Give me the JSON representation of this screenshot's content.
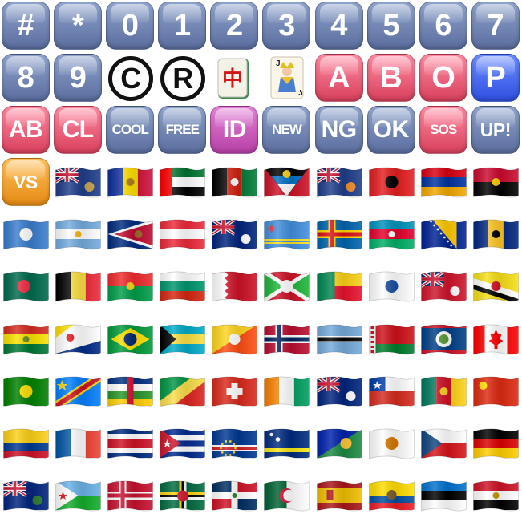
{
  "keycaps": [
    {
      "label": "#",
      "color": "blue",
      "size": "xl"
    },
    {
      "label": "*",
      "color": "blue",
      "size": "xl"
    },
    {
      "label": "0",
      "color": "blue",
      "size": "xl"
    },
    {
      "label": "1",
      "color": "blue",
      "size": "xl"
    },
    {
      "label": "2",
      "color": "blue",
      "size": "xl"
    },
    {
      "label": "3",
      "color": "blue",
      "size": "xl"
    },
    {
      "label": "4",
      "color": "blue",
      "size": "xl"
    },
    {
      "label": "5",
      "color": "blue",
      "size": "xl"
    },
    {
      "label": "6",
      "color": "blue",
      "size": "xl"
    },
    {
      "label": "7",
      "color": "blue",
      "size": "xl"
    },
    {
      "label": "8",
      "color": "blue",
      "size": "xl"
    },
    {
      "label": "9",
      "color": "blue",
      "size": "xl"
    }
  ],
  "symbols": [
    {
      "label": "C",
      "icon": "copyright-icon"
    },
    {
      "label": "R",
      "icon": "registered-icon"
    }
  ],
  "tiles": [
    {
      "icon": "mahjong-red-dragon-icon",
      "glyph": "中",
      "color": "#d01818"
    },
    {
      "icon": "joker-card-icon",
      "corner": "J"
    }
  ],
  "letters": [
    {
      "label": "A",
      "color": "red",
      "size": "xl"
    },
    {
      "label": "B",
      "color": "red",
      "size": "xl"
    },
    {
      "label": "O",
      "color": "red",
      "size": "xl"
    },
    {
      "label": "P",
      "color": "pblue",
      "size": "xl"
    }
  ],
  "buttons": [
    {
      "label": "AB",
      "color": "red",
      "size": "lg"
    },
    {
      "label": "CL",
      "color": "red",
      "size": "lg"
    },
    {
      "label": "COOL",
      "color": "blue",
      "size": "sm"
    },
    {
      "label": "FREE",
      "color": "blue",
      "size": "sm"
    },
    {
      "label": "ID",
      "color": "purple",
      "size": "lg"
    },
    {
      "label": "NEW",
      "color": "blue",
      "size": "sm"
    },
    {
      "label": "NG",
      "color": "blue",
      "size": "lg"
    },
    {
      "label": "OK",
      "color": "blue",
      "size": "lg"
    },
    {
      "label": "SOS",
      "color": "red",
      "size": "sm"
    },
    {
      "label": "UP!",
      "color": "blue",
      "size": "md"
    },
    {
      "label": "VS",
      "color": "orange",
      "size": "md"
    }
  ],
  "flags": [
    {
      "name": "ascension-island",
      "kind": "ensign",
      "colors": [
        "#1f3d8a",
        "#cf142b",
        "#ffffff"
      ],
      "emblem": "#c8a24a"
    },
    {
      "name": "andorra",
      "kind": "v3",
      "colors": [
        "#10309c",
        "#fedf00",
        "#d0103a"
      ],
      "emblem": "#b07a1a"
    },
    {
      "name": "united-arab-emirates",
      "kind": "uae",
      "colors": [
        "#00732f",
        "#ffffff",
        "#000000",
        "#ff0000"
      ]
    },
    {
      "name": "afghanistan",
      "kind": "v3",
      "colors": [
        "#000000",
        "#d32011",
        "#007a36"
      ],
      "emblem": "#ffffff"
    },
    {
      "name": "antigua-barbuda",
      "kind": "antigua",
      "colors": [
        "#ce1126",
        "#000000",
        "#0072c6",
        "#ffffff",
        "#fcd116"
      ]
    },
    {
      "name": "anguilla",
      "kind": "ensign",
      "colors": [
        "#1f3d8a",
        "#cf142b",
        "#ffffff"
      ],
      "emblem": "#f18c2a"
    },
    {
      "name": "albania",
      "kind": "solid",
      "colors": [
        "#e41e20"
      ],
      "emblem": "#000000"
    },
    {
      "name": "armenia",
      "kind": "h3",
      "colors": [
        "#d90012",
        "#0033a0",
        "#f2a800"
      ]
    },
    {
      "name": "angola",
      "kind": "h2",
      "colors": [
        "#cc092f",
        "#000000"
      ],
      "emblem": "#ffcb00"
    },
    {
      "name": "antarctica",
      "kind": "solid",
      "colors": [
        "#3a7dce"
      ],
      "emblem": "#ffffff"
    },
    {
      "name": "argentina",
      "kind": "h3",
      "colors": [
        "#74acdf",
        "#ffffff",
        "#74acdf"
      ],
      "emblem": "#f6b40e"
    },
    {
      "name": "american-samoa",
      "kind": "asamoa",
      "colors": [
        "#002b7f",
        "#ffffff",
        "#bf0a30"
      ],
      "emblem": "#9a6a2a"
    },
    {
      "name": "austria",
      "kind": "h3",
      "colors": [
        "#ed2939",
        "#ffffff",
        "#ed2939"
      ]
    },
    {
      "name": "australia",
      "kind": "ensign",
      "colors": [
        "#00247d",
        "#cf142b",
        "#ffffff"
      ],
      "emblem": "#ffffff"
    },
    {
      "name": "aruba",
      "kind": "aruba",
      "colors": [
        "#418fde",
        "#fbe122",
        "#ef3340"
      ]
    },
    {
      "name": "aland-islands",
      "kind": "nordic",
      "colors": [
        "#0064ad",
        "#ffd300",
        "#da0e15"
      ]
    },
    {
      "name": "azerbaijan",
      "kind": "h3",
      "colors": [
        "#0092bc",
        "#e4002b",
        "#00af66"
      ],
      "emblem": "#ffffff"
    },
    {
      "name": "bosnia-herzegovina",
      "kind": "bosnia",
      "colors": [
        "#002395",
        "#fecb00",
        "#ffffff"
      ]
    },
    {
      "name": "barbados",
      "kind": "v3",
      "colors": [
        "#00267f",
        "#ffc726",
        "#00267f"
      ],
      "emblem": "#000000"
    },
    {
      "name": "bangladesh",
      "kind": "solid",
      "colors": [
        "#006a4e"
      ],
      "emblem": "#f42a41"
    },
    {
      "name": "belgium",
      "kind": "v3",
      "colors": [
        "#000000",
        "#fae042",
        "#ed2939"
      ]
    },
    {
      "name": "burkina-faso",
      "kind": "h2",
      "colors": [
        "#ef2b2d",
        "#009e49"
      ],
      "emblem": "#fcd116"
    },
    {
      "name": "bulgaria",
      "kind": "h3",
      "colors": [
        "#ffffff",
        "#00966e",
        "#d62612"
      ]
    },
    {
      "name": "bahrain",
      "kind": "bahrain",
      "colors": [
        "#ffffff",
        "#ce1126"
      ]
    },
    {
      "name": "burundi",
      "kind": "burundi",
      "colors": [
        "#ce1126",
        "#1eb53a",
        "#ffffff"
      ]
    },
    {
      "name": "benin",
      "kind": "benin",
      "colors": [
        "#008751",
        "#fcd116",
        "#e8112d"
      ]
    },
    {
      "name": "st-barthelemy",
      "kind": "solid",
      "colors": [
        "#ffffff"
      ],
      "emblem": "#1d4fa0"
    },
    {
      "name": "bermuda",
      "kind": "ensign",
      "colors": [
        "#cf142b",
        "#00247d",
        "#ffffff"
      ],
      "emblem": "#ffffff"
    },
    {
      "name": "brunei",
      "kind": "brunei",
      "colors": [
        "#f7e017",
        "#ffffff",
        "#000000"
      ],
      "emblem": "#cf1126"
    },
    {
      "name": "bolivia",
      "kind": "h3",
      "colors": [
        "#d52b1e",
        "#f9e300",
        "#007934"
      ],
      "emblem": "#6b8e23"
    },
    {
      "name": "caribbean-netherlands",
      "kind": "bq",
      "colors": [
        "#ffffff",
        "#fedf00",
        "#012a87"
      ],
      "emblem": "#dc171d"
    },
    {
      "name": "brazil",
      "kind": "brazil",
      "colors": [
        "#009b3a",
        "#fedf00",
        "#002776"
      ]
    },
    {
      "name": "bahamas",
      "kind": "bahamas",
      "colors": [
        "#00abc9",
        "#fae042",
        "#000000"
      ]
    },
    {
      "name": "bhutan",
      "kind": "bhutan",
      "colors": [
        "#ffd520",
        "#ff4e12"
      ],
      "emblem": "#ffffff"
    },
    {
      "name": "bouvet-island",
      "kind": "nordic",
      "colors": [
        "#ba0c2f",
        "#ffffff",
        "#00205b"
      ]
    },
    {
      "name": "botswana",
      "kind": "botswana",
      "colors": [
        "#75aadb",
        "#ffffff",
        "#000000"
      ]
    },
    {
      "name": "belarus",
      "kind": "belarus",
      "colors": [
        "#cf101a",
        "#007d2c",
        "#ffffff"
      ]
    },
    {
      "name": "belize",
      "kind": "belize",
      "colors": [
        "#003f87",
        "#ce1126",
        "#ffffff"
      ],
      "emblem": "#5a9a3a"
    },
    {
      "name": "canada",
      "kind": "canada",
      "colors": [
        "#ff0000",
        "#ffffff"
      ]
    },
    {
      "name": "cocos-islands",
      "kind": "solid",
      "colors": [
        "#008000"
      ],
      "emblem": "#ffe000"
    },
    {
      "name": "congo-kinshasa",
      "kind": "drc",
      "colors": [
        "#007fff",
        "#f7d618",
        "#ce1021"
      ]
    },
    {
      "name": "central-african-republic",
      "kind": "car",
      "colors": [
        "#003082",
        "#ffffff",
        "#289728",
        "#ffce00",
        "#d21034"
      ]
    },
    {
      "name": "congo-brazzaville",
      "kind": "congo",
      "colors": [
        "#009543",
        "#fbde4a",
        "#dc241f"
      ]
    },
    {
      "name": "switzerland",
      "kind": "swiss",
      "colors": [
        "#da291c",
        "#ffffff"
      ]
    },
    {
      "name": "cote-divoire",
      "kind": "v3",
      "colors": [
        "#f77f00",
        "#ffffff",
        "#009e60"
      ]
    },
    {
      "name": "cook-islands",
      "kind": "ensign",
      "colors": [
        "#00247d",
        "#cf142b",
        "#ffffff"
      ],
      "emblem": "#ffffff"
    },
    {
      "name": "chile",
      "kind": "chile",
      "colors": [
        "#ffffff",
        "#d52b1e",
        "#0039a6"
      ]
    },
    {
      "name": "cameroon",
      "kind": "v3",
      "colors": [
        "#007a5e",
        "#ce1126",
        "#fcd116"
      ],
      "emblem": "#fcd116"
    },
    {
      "name": "china",
      "kind": "solid",
      "colors": [
        "#de2910"
      ],
      "emblem": "#ffde00"
    },
    {
      "name": "colombia",
      "kind": "colombia",
      "colors": [
        "#fcd116",
        "#003893",
        "#ce1126"
      ]
    },
    {
      "name": "clipperton-island",
      "kind": "v3",
      "colors": [
        "#0055a4",
        "#ffffff",
        "#ef4135"
      ]
    },
    {
      "name": "costa-rica",
      "kind": "costarica",
      "colors": [
        "#002b7f",
        "#ffffff",
        "#ce1126"
      ]
    },
    {
      "name": "cuba",
      "kind": "cuba",
      "colors": [
        "#002a8f",
        "#ffffff",
        "#cf142b"
      ]
    },
    {
      "name": "cape-verde",
      "kind": "capeverde",
      "colors": [
        "#003893",
        "#ffffff",
        "#cf2027"
      ],
      "emblem": "#f7d116"
    },
    {
      "name": "curacao",
      "kind": "curacao",
      "colors": [
        "#002b7f",
        "#f9e814"
      ],
      "emblem": "#ffffff"
    },
    {
      "name": "christmas-island",
      "kind": "christmas",
      "colors": [
        "#0021ad",
        "#1c8a42"
      ],
      "emblem": "#ffc639"
    },
    {
      "name": "cyprus",
      "kind": "solid",
      "colors": [
        "#ffffff"
      ],
      "emblem": "#d57800"
    },
    {
      "name": "czechia",
      "kind": "czech",
      "colors": [
        "#ffffff",
        "#d7141a",
        "#11457e"
      ]
    },
    {
      "name": "germany",
      "kind": "h3",
      "colors": [
        "#000000",
        "#dd0000",
        "#ffce00"
      ]
    },
    {
      "name": "diego-garcia",
      "kind": "ensign",
      "colors": [
        "#00247d",
        "#cf142b",
        "#ffffff"
      ],
      "emblem": "#2a7a2a"
    },
    {
      "name": "djibouti",
      "kind": "djibouti",
      "colors": [
        "#6ab2e7",
        "#12ad2b",
        "#ffffff",
        "#d7141a"
      ]
    },
    {
      "name": "denmark",
      "kind": "nordic",
      "colors": [
        "#c8102e",
        "#ffffff",
        "#c8102e"
      ]
    },
    {
      "name": "dominica",
      "kind": "dominica",
      "colors": [
        "#006b3f",
        "#fcd116",
        "#000000",
        "#ffffff",
        "#d41c30"
      ]
    },
    {
      "name": "dominican-republic",
      "kind": "domrep",
      "colors": [
        "#002d62",
        "#ce1126",
        "#ffffff"
      ],
      "emblem": "#2a7a2a"
    },
    {
      "name": "algeria",
      "kind": "algeria",
      "colors": [
        "#006233",
        "#ffffff",
        "#d21034"
      ]
    },
    {
      "name": "ceuta-melilla",
      "kind": "spain",
      "colors": [
        "#aa151b",
        "#f1bf00"
      ],
      "emblem": "#ad1519"
    },
    {
      "name": "ecuador",
      "kind": "ecuador",
      "colors": [
        "#ffdd00",
        "#034ea2",
        "#ed1c24"
      ],
      "emblem": "#7a5a2a"
    },
    {
      "name": "estonia",
      "kind": "h3",
      "colors": [
        "#0072ce",
        "#000000",
        "#ffffff"
      ]
    },
    {
      "name": "egypt",
      "kind": "h3",
      "colors": [
        "#ce1126",
        "#ffffff",
        "#000000"
      ],
      "emblem": "#c09300"
    }
  ]
}
